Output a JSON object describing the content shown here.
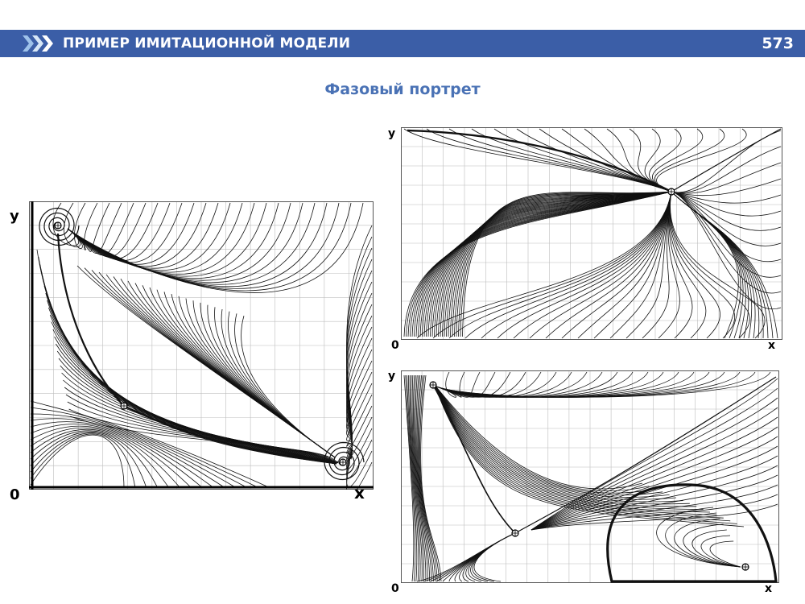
{
  "header": {
    "title": "ПРИМЕР ИМИТАЦИОННОЙ МОДЕЛИ",
    "page_number": "573",
    "icon": "chevron-arrows-icon",
    "bar_color": "#3b5ea7"
  },
  "slide": {
    "subtitle": "Фазовый портрет",
    "subtitle_color": "#4a72b5"
  },
  "diagrams": [
    {
      "id": "left",
      "y_label": "y",
      "x_label": "x",
      "origin_label": "0"
    },
    {
      "id": "top-right",
      "y_label": "y",
      "x_label": "x",
      "origin_label": "0"
    },
    {
      "id": "bottom-right",
      "y_label": "y",
      "x_label": "x",
      "origin_label": "0"
    }
  ]
}
